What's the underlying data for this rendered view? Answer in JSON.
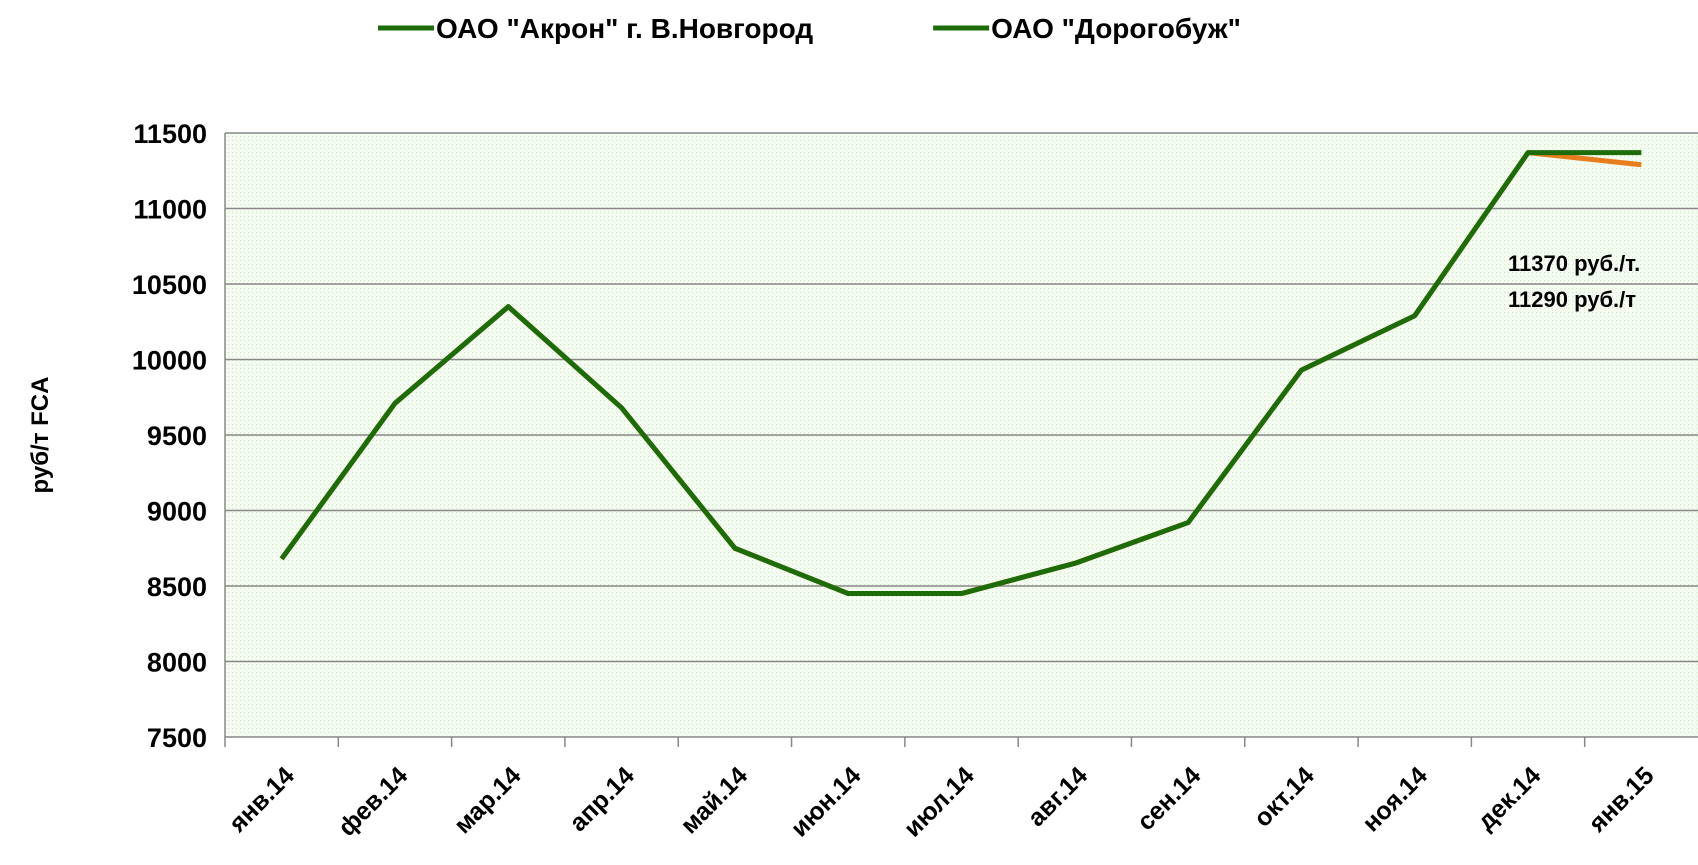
{
  "chart_data": {
    "type": "line",
    "y_label": "руб/т FCA",
    "categories": [
      "янв.14",
      "фев.14",
      "мар.14",
      "апр.14",
      "май.14",
      "июн.14",
      "июл.14",
      "авг.14",
      "сен.14",
      "окт.14",
      "ноя.14",
      "дек.14",
      "янв.15"
    ],
    "series": [
      {
        "name": "ОАО \"Акрон\" г. В.Новгород",
        "color": "#1e6b0a",
        "values": [
          8680,
          9710,
          10350,
          9680,
          8750,
          8450,
          8450,
          8650,
          8920,
          9930,
          10290,
          11370,
          11370
        ]
      },
      {
        "name": "ОАО \"Дорогобуж\"",
        "color": "#e87d1e",
        "legend_color": "#1e6b0a",
        "values": [
          8680,
          9710,
          10350,
          9680,
          8750,
          8450,
          8450,
          8650,
          8920,
          9930,
          10290,
          11370,
          11290
        ]
      }
    ],
    "annotations": [
      "11370 руб./т.",
      "11290 руб./т"
    ],
    "ylim": [
      7500,
      11500
    ],
    "yticks": [
      7500,
      8000,
      8500,
      9000,
      9500,
      10000,
      10500,
      11000,
      11500
    ],
    "grid": true
  }
}
